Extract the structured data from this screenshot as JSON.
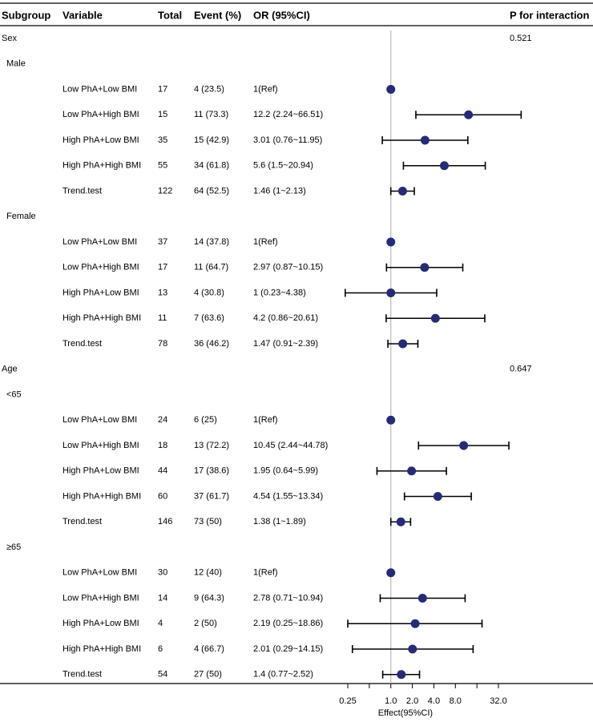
{
  "colors": {
    "point": "#262b78",
    "line": "#000000",
    "refline": "#b8b8b8"
  },
  "chart_data": {
    "type": "forest",
    "columns": [
      "Subgroup",
      "Variable",
      "Total",
      "Event (%)",
      "OR (95%CI)",
      "P for interaction"
    ],
    "xlabel": "Effect(95%CI)",
    "x_scale": "log2",
    "xlim": [
      0.25,
      32.0
    ],
    "x_ticks": [
      0.25,
      0.5,
      1.0,
      2.0,
      4.0,
      8.0,
      16.0,
      32.0
    ],
    "x_tick_labels": [
      "0.25",
      "",
      "1.0",
      "2.0",
      "4.0",
      "8.0",
      "",
      "32.0"
    ],
    "reference_line": 1,
    "rows": [
      {
        "kind": "group",
        "label": "Sex",
        "p": "0.521"
      },
      {
        "kind": "subgroup",
        "label": "Male"
      },
      {
        "kind": "data",
        "variable": "Low PhA+Low BMI",
        "total": "17",
        "event": "4 (23.5)",
        "or_text": "1(Ref)",
        "or": 1,
        "lo": null,
        "hi": null
      },
      {
        "kind": "data",
        "variable": "Low PhA+High BMI",
        "total": "15",
        "event": "11 (73.3)",
        "or_text": "12.2 (2.24~66.51)",
        "or": 12.2,
        "lo": 2.24,
        "hi": 66.51
      },
      {
        "kind": "data",
        "variable": "High PhA+Low BMI",
        "total": "35",
        "event": "15 (42.9)",
        "or_text": "3.01 (0.76~11.95)",
        "or": 3.01,
        "lo": 0.76,
        "hi": 11.95
      },
      {
        "kind": "data",
        "variable": "High PhA+High BMI",
        "total": "55",
        "event": "34 (61.8)",
        "or_text": "5.6 (1.5~20.94)",
        "or": 5.6,
        "lo": 1.5,
        "hi": 20.94
      },
      {
        "kind": "data",
        "variable": "Trend.test",
        "total": "122",
        "event": "64 (52.5)",
        "or_text": "1.46 (1~2.13)",
        "or": 1.46,
        "lo": 1.0,
        "hi": 2.13
      },
      {
        "kind": "subgroup",
        "label": "Female"
      },
      {
        "kind": "data",
        "variable": "Low PhA+Low BMI",
        "total": "37",
        "event": "14 (37.8)",
        "or_text": "1(Ref)",
        "or": 1,
        "lo": null,
        "hi": null
      },
      {
        "kind": "data",
        "variable": "Low PhA+High BMI",
        "total": "17",
        "event": "11 (64.7)",
        "or_text": "2.97 (0.87~10.15)",
        "or": 2.97,
        "lo": 0.87,
        "hi": 10.15
      },
      {
        "kind": "data",
        "variable": "High PhA+Low BMI",
        "total": "13",
        "event": "4 (30.8)",
        "or_text": "1 (0.23~4.38)",
        "or": 1.0,
        "lo": 0.23,
        "hi": 4.38
      },
      {
        "kind": "data",
        "variable": "High PhA+High BMI",
        "total": "11",
        "event": "7 (63.6)",
        "or_text": "4.2 (0.86~20.61)",
        "or": 4.2,
        "lo": 0.86,
        "hi": 20.61
      },
      {
        "kind": "data",
        "variable": "Trend.test",
        "total": "78",
        "event": "36 (46.2)",
        "or_text": "1.47 (0.91~2.39)",
        "or": 1.47,
        "lo": 0.91,
        "hi": 2.39
      },
      {
        "kind": "group",
        "label": "Age",
        "p": "0.647"
      },
      {
        "kind": "subgroup",
        "label": "<65"
      },
      {
        "kind": "data",
        "variable": "Low PhA+Low BMI",
        "total": "24",
        "event": "6 (25)",
        "or_text": "1(Ref)",
        "or": 1,
        "lo": null,
        "hi": null
      },
      {
        "kind": "data",
        "variable": "Low PhA+High BMI",
        "total": "18",
        "event": "13 (72.2)",
        "or_text": "10.45 (2.44~44.78)",
        "or": 10.45,
        "lo": 2.44,
        "hi": 44.78
      },
      {
        "kind": "data",
        "variable": "High PhA+Low BMI",
        "total": "44",
        "event": "17 (38.6)",
        "or_text": "1.95 (0.64~5.99)",
        "or": 1.95,
        "lo": 0.64,
        "hi": 5.99
      },
      {
        "kind": "data",
        "variable": "High PhA+High BMI",
        "total": "60",
        "event": "37 (61.7)",
        "or_text": "4.54 (1.55~13.34)",
        "or": 4.54,
        "lo": 1.55,
        "hi": 13.34
      },
      {
        "kind": "data",
        "variable": "Trend.test",
        "total": "146",
        "event": "73 (50)",
        "or_text": "1.38 (1~1.89)",
        "or": 1.38,
        "lo": 1.0,
        "hi": 1.89
      },
      {
        "kind": "subgroup",
        "label": "≥65"
      },
      {
        "kind": "data",
        "variable": "Low PhA+Low BMI",
        "total": "30",
        "event": "12 (40)",
        "or_text": "1(Ref)",
        "or": 1,
        "lo": null,
        "hi": null
      },
      {
        "kind": "data",
        "variable": "Low PhA+High BMI",
        "total": "14",
        "event": "9 (64.3)",
        "or_text": "2.78 (0.71~10.94)",
        "or": 2.78,
        "lo": 0.71,
        "hi": 10.94
      },
      {
        "kind": "data",
        "variable": "High PhA+Low BMI",
        "total": "4",
        "event": "2 (50)",
        "or_text": "2.19 (0.25~18.86)",
        "or": 2.19,
        "lo": 0.25,
        "hi": 18.86
      },
      {
        "kind": "data",
        "variable": "High PhA+High BMI",
        "total": "6",
        "event": "4 (66.7)",
        "or_text": "2.01 (0.29~14.15)",
        "or": 2.01,
        "lo": 0.29,
        "hi": 14.15
      },
      {
        "kind": "data",
        "variable": "Trend.test",
        "total": "54",
        "event": "27 (50)",
        "or_text": "1.4 (0.77~2.52)",
        "or": 1.4,
        "lo": 0.77,
        "hi": 2.52
      }
    ]
  }
}
